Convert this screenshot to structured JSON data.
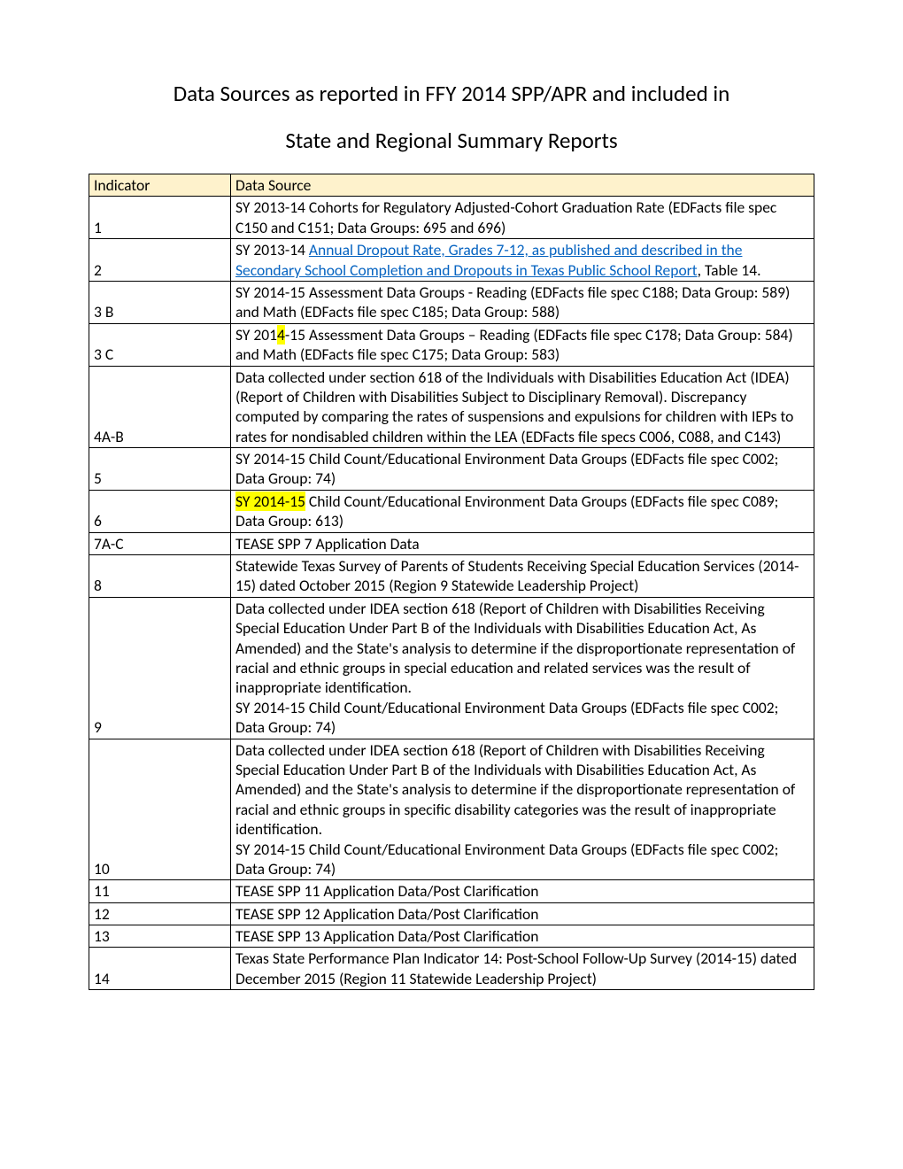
{
  "title": "Data Sources as reported in FFY 2014 SPP/APR and included in",
  "subtitle": "State and Regional Summary Reports",
  "table": {
    "headers": {
      "col1": "Indicator",
      "col2": "Data Source"
    },
    "rows": [
      {
        "indicator": "1",
        "source": "SY 2013-14 Cohorts for Regulatory Adjusted-Cohort Graduation Rate (EDFacts file spec C150 and C151; Data Groups: 695 and 696)"
      },
      {
        "indicator": "2",
        "source_pre": "SY 2013-14 ",
        "link": "Annual Dropout Rate, Grades 7-12, as published and described in the Secondary School Completion and Dropouts in Texas Public School Report",
        "source_post": ", Table 14."
      },
      {
        "indicator": "3 B",
        "source": "SY 2014-15 Assessment Data Groups - Reading (EDFacts file spec C188; Data Group: 589) and Math (EDFacts file spec C185; Data Group: 588)"
      },
      {
        "indicator": "3 C",
        "source_pre": "SY 201",
        "highlight": "4",
        "source_post": "-15 Assessment Data Groups – Reading (EDFacts file spec C178; Data Group: 584) and Math (EDFacts file spec C175; Data Group: 583)"
      },
      {
        "indicator": "4A-B",
        "source": "Data collected under section 618 of the Individuals with Disabilities Education Act (IDEA) (Report of Children with Disabilities Subject to Disciplinary Removal). Discrepancy computed by comparing the rates of suspensions and expulsions for children with IEPs to rates for nondisabled children within the LEA  (EDFacts file specs C006, C088, and C143)"
      },
      {
        "indicator": "5",
        "source": "SY 2014-15 Child Count/Educational Environment Data Groups (EDFacts file spec C002; Data Group: 74)"
      },
      {
        "indicator": "6",
        "highlight": "SY 2014-15",
        "source_post": " Child Count/Educational Environment Data Groups (EDFacts file spec C089; Data Group: 613)"
      },
      {
        "indicator": "7A-C",
        "source": "TEASE SPP 7 Application Data"
      },
      {
        "indicator": "8",
        "source": "Statewide Texas Survey of Parents of Students Receiving Special Education Services (2014-15) dated October 2015 (Region 9 Statewide Leadership Project)"
      },
      {
        "indicator": "9",
        "source": "Data collected under IDEA section 618 (Report of Children with Disabilities Receiving Special Education Under Part B of the Individuals with Disabilities Education Act, As Amended) and the State's analysis to determine if the disproportionate representation of racial and ethnic groups in special education and related services was the result of inappropriate identification.\nSY 2014-15 Child Count/Educational Environment Data Groups (EDFacts file spec C002; Data Group: 74)"
      },
      {
        "indicator": "10",
        "source": "Data collected under IDEA section 618 (Report of Children with Disabilities Receiving Special Education Under Part B of the Individuals with Disabilities Education Act, As Amended) and the State's analysis to determine if the disproportionate representation of racial and ethnic groups in specific disability categories was the result of inappropriate identification.\nSY 2014-15 Child Count/Educational Environment Data Groups (EDFacts file spec C002; Data Group: 74)"
      },
      {
        "indicator": "11",
        "source": "TEASE SPP 11 Application Data/Post Clarification"
      },
      {
        "indicator": "12",
        "source": "TEASE SPP 12 Application Data/Post Clarification"
      },
      {
        "indicator": "13",
        "source": "TEASE SPP 13 Application Data/Post Clarification"
      },
      {
        "indicator": "14",
        "source": "Texas State Performance Plan Indicator 14: Post-School Follow-Up Survey (2014-15) dated December 2015 (Region 11 Statewide Leadership Project)"
      }
    ]
  },
  "colors": {
    "header_bg": "#fef2cc",
    "link_color": "#0563c1",
    "highlight_bg": "#ffff00",
    "text_color": "#000000",
    "border_color": "#000000",
    "background": "#ffffff"
  },
  "typography": {
    "font_family": "Calibri",
    "title_fontsize": 25,
    "body_fontsize": 17.5
  }
}
